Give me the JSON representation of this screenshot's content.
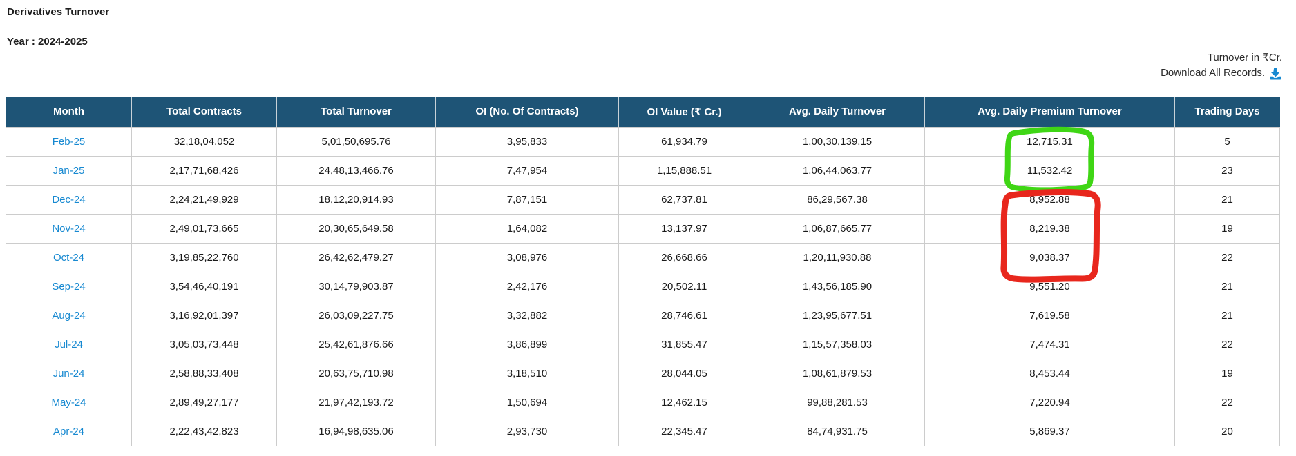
{
  "page": {
    "title": "Derivatives Turnover",
    "year_label": "Year : 2024-2025",
    "unit_note": "Turnover in ₹Cr.",
    "download_label": "Download All Records."
  },
  "colors": {
    "header_bg": "#1e5476",
    "link_blue": "#1789d1",
    "download_icon_blue": "#1789d1",
    "annotation_green": "#3fd615",
    "annotation_red": "#e8271d"
  },
  "table": {
    "columns": [
      "Month",
      "Total Contracts",
      "Total Turnover",
      "OI (No. Of Contracts)",
      "OI Value (₹ Cr.)",
      "Avg. Daily Turnover",
      "Avg. Daily Premium Turnover",
      "Trading Days"
    ],
    "rows": [
      [
        "Feb-25",
        "32,18,04,052",
        "5,01,50,695.76",
        "3,95,833",
        "61,934.79",
        "1,00,30,139.15",
        "12,715.31",
        "5"
      ],
      [
        "Jan-25",
        "2,17,71,68,426",
        "24,48,13,466.76",
        "7,47,954",
        "1,15,888.51",
        "1,06,44,063.77",
        "11,532.42",
        "23"
      ],
      [
        "Dec-24",
        "2,24,21,49,929",
        "18,12,20,914.93",
        "7,87,151",
        "62,737.81",
        "86,29,567.38",
        "8,952.88",
        "21"
      ],
      [
        "Nov-24",
        "2,49,01,73,665",
        "20,30,65,649.58",
        "1,64,082",
        "13,137.97",
        "1,06,87,665.77",
        "8,219.38",
        "19"
      ],
      [
        "Oct-24",
        "3,19,85,22,760",
        "26,42,62,479.27",
        "3,08,976",
        "26,668.66",
        "1,20,11,930.88",
        "9,038.37",
        "22"
      ],
      [
        "Sep-24",
        "3,54,46,40,191",
        "30,14,79,903.87",
        "2,42,176",
        "20,502.11",
        "1,43,56,185.90",
        "9,551.20",
        "21"
      ],
      [
        "Aug-24",
        "3,16,92,01,397",
        "26,03,09,227.75",
        "3,32,882",
        "28,746.61",
        "1,23,95,677.51",
        "7,619.58",
        "21"
      ],
      [
        "Jul-24",
        "3,05,03,73,448",
        "25,42,61,876.66",
        "3,86,899",
        "31,855.47",
        "1,15,57,358.03",
        "7,474.31",
        "22"
      ],
      [
        "Jun-24",
        "2,58,88,33,408",
        "20,63,75,710.98",
        "3,18,510",
        "28,044.05",
        "1,08,61,879.53",
        "8,453.44",
        "19"
      ],
      [
        "May-24",
        "2,89,49,27,177",
        "21,97,42,193.72",
        "1,50,694",
        "12,462.15",
        "99,88,281.53",
        "7,220.94",
        "22"
      ],
      [
        "Apr-24",
        "2,22,43,42,823",
        "16,94,98,635.06",
        "2,93,730",
        "22,345.47",
        "84,74,931.75",
        "5,869.37",
        "20"
      ]
    ]
  },
  "annotations": [
    {
      "shape": "freehand-rect",
      "color": "#3fd615",
      "column": "Avg. Daily Premium Turnover",
      "highlighted_months": [
        "Feb-25",
        "Jan-25"
      ],
      "highlighted_values": [
        "12,715.31",
        "11,532.42"
      ]
    },
    {
      "shape": "freehand-rect",
      "color": "#e8271d",
      "column": "Avg. Daily Premium Turnover",
      "highlighted_months": [
        "Dec-24",
        "Nov-24",
        "Oct-24"
      ],
      "highlighted_values": [
        "8,952.88",
        "8,219.38",
        "9,038.37"
      ]
    }
  ]
}
